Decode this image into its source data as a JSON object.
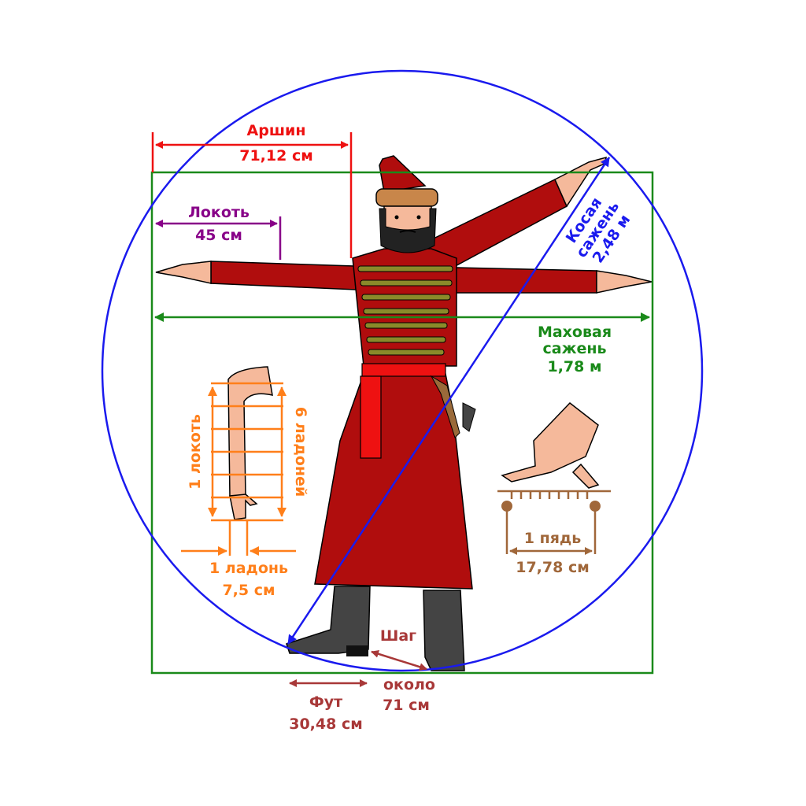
{
  "labels": {
    "arshin_name": "Аршин",
    "arshin_value": "71,12 см",
    "lokot_name": "Локоть",
    "lokot_value": "45 см",
    "kosaya_name": "Косая",
    "kosaya_word": "сажень",
    "kosaya_value": "2,48 м",
    "makhovaya_name": "Маховая",
    "makhovaya_word": "сажень",
    "makhovaya_value": "1,78 м",
    "forearm_left": "1 локоть",
    "forearm_right": "6 ладоней",
    "ladon_name": "1 ладонь",
    "ladon_value": "7,5 см",
    "pyad_name": "1 пядь",
    "pyad_value": "17,78 см",
    "shag_name": "Шаг",
    "shag_approx": "около",
    "shag_value": "71 см",
    "fut_name": "Фут",
    "fut_value": "30,48 см"
  },
  "colors": {
    "arshin": "#ee1111",
    "lokot": "#880088",
    "kosaya": "#1a1aee",
    "makhovaya": "#1a8a1a",
    "forearm": "#ff7f1a",
    "pyad": "#a0673a",
    "shag": "#a83838",
    "kaftan": "#b00d0d",
    "braid": "#8a8a2a",
    "skin": "#f5b99b",
    "boot": "#444444"
  }
}
